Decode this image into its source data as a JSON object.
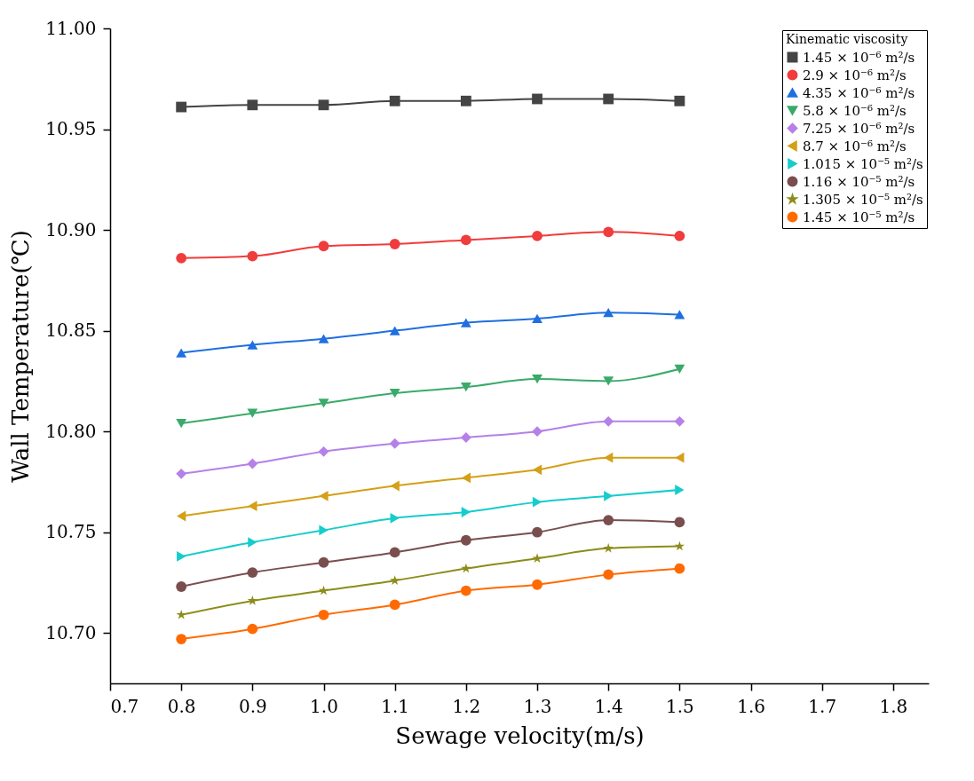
{
  "chart_data": {
    "type": "line",
    "xlabel": "Sewage velocity(m/s)",
    "ylabel": "Wall Temperature(℃)",
    "legend_title": "Kinematic viscosity",
    "legend": "top right",
    "grid": false,
    "line_style": "solid",
    "x": [
      0.8,
      0.9,
      1.0,
      1.1,
      1.2,
      1.3,
      1.4,
      1.5
    ],
    "xlim": [
      0.7,
      1.85
    ],
    "xticks": [
      0.7,
      0.8,
      {
        "value": 0.9,
        "label": "0.9"
      },
      {
        "value": 1.0,
        "label": "1.0"
      },
      1.1,
      1.2,
      1.3,
      1.4,
      1.5,
      1.6,
      1.7,
      1.8
    ],
    "ylim": [
      10.675,
      11.0
    ],
    "yticks": [
      {
        "value": 10.7,
        "label": "10.70"
      },
      {
        "value": 10.75,
        "label": "10.75"
      },
      {
        "value": 10.8,
        "label": "10.80"
      },
      {
        "value": 10.85,
        "label": "10.85"
      },
      {
        "value": 10.9,
        "label": "10.90"
      },
      {
        "value": 10.95,
        "label": "10.95"
      },
      {
        "value": 11.0,
        "label": "11.00"
      }
    ],
    "series": [
      {
        "name": "1.45 × 10⁻⁶ m²/s",
        "color": "#444444",
        "marker": "square",
        "values": [
          10.961,
          10.962,
          10.962,
          10.964,
          10.964,
          10.965,
          10.965,
          10.964
        ]
      },
      {
        "name": "2.9 × 10⁻⁶ m²/s",
        "color": "#f03c3c",
        "marker": "circle",
        "values": [
          10.886,
          10.887,
          10.892,
          10.893,
          10.895,
          10.897,
          10.899,
          10.897
        ]
      },
      {
        "name": "4.35 × 10⁻⁶ m²/s",
        "color": "#1f6fe0",
        "marker": "triangle",
        "values": [
          10.839,
          10.843,
          10.846,
          10.85,
          10.854,
          10.856,
          10.859,
          10.858
        ]
      },
      {
        "name": "5.8 × 10⁻⁶ m²/s",
        "color": "#3aaa6a",
        "marker": "triangle-down",
        "values": [
          10.804,
          10.809,
          10.814,
          10.819,
          10.822,
          10.826,
          10.825,
          10.831
        ]
      },
      {
        "name": "7.25 × 10⁻⁶ m²/s",
        "color": "#b580e8",
        "marker": "diamond",
        "values": [
          10.779,
          10.784,
          10.79,
          10.794,
          10.797,
          10.8,
          10.805,
          10.805
        ]
      },
      {
        "name": "8.7 × 10⁻⁶ m²/s",
        "color": "#d4a017",
        "marker": "triangle-left",
        "values": [
          10.758,
          10.763,
          10.768,
          10.773,
          10.777,
          10.781,
          10.787,
          10.787
        ]
      },
      {
        "name": "1.015 × 10⁻⁵ m²/s",
        "color": "#17cccc",
        "marker": "triangle-right",
        "values": [
          10.738,
          10.745,
          10.751,
          10.757,
          10.76,
          10.765,
          10.768,
          10.771
        ]
      },
      {
        "name": "1.16 × 10⁻⁵ m²/s",
        "color": "#7a4e4e",
        "marker": "circle",
        "values": [
          10.723,
          10.73,
          10.735,
          10.74,
          10.746,
          10.75,
          10.756,
          10.755
        ]
      },
      {
        "name": "1.305 × 10⁻⁵ m²/s",
        "color": "#8c8c1a",
        "marker": "star",
        "values": [
          10.709,
          10.716,
          10.721,
          10.726,
          10.732,
          10.737,
          10.742,
          10.743
        ]
      },
      {
        "name": "1.45 × 10⁻⁵ m²/s",
        "color": "#ff6a00",
        "marker": "circle",
        "values": [
          10.697,
          10.702,
          10.709,
          10.714,
          10.721,
          10.724,
          10.729,
          10.732
        ]
      }
    ]
  }
}
